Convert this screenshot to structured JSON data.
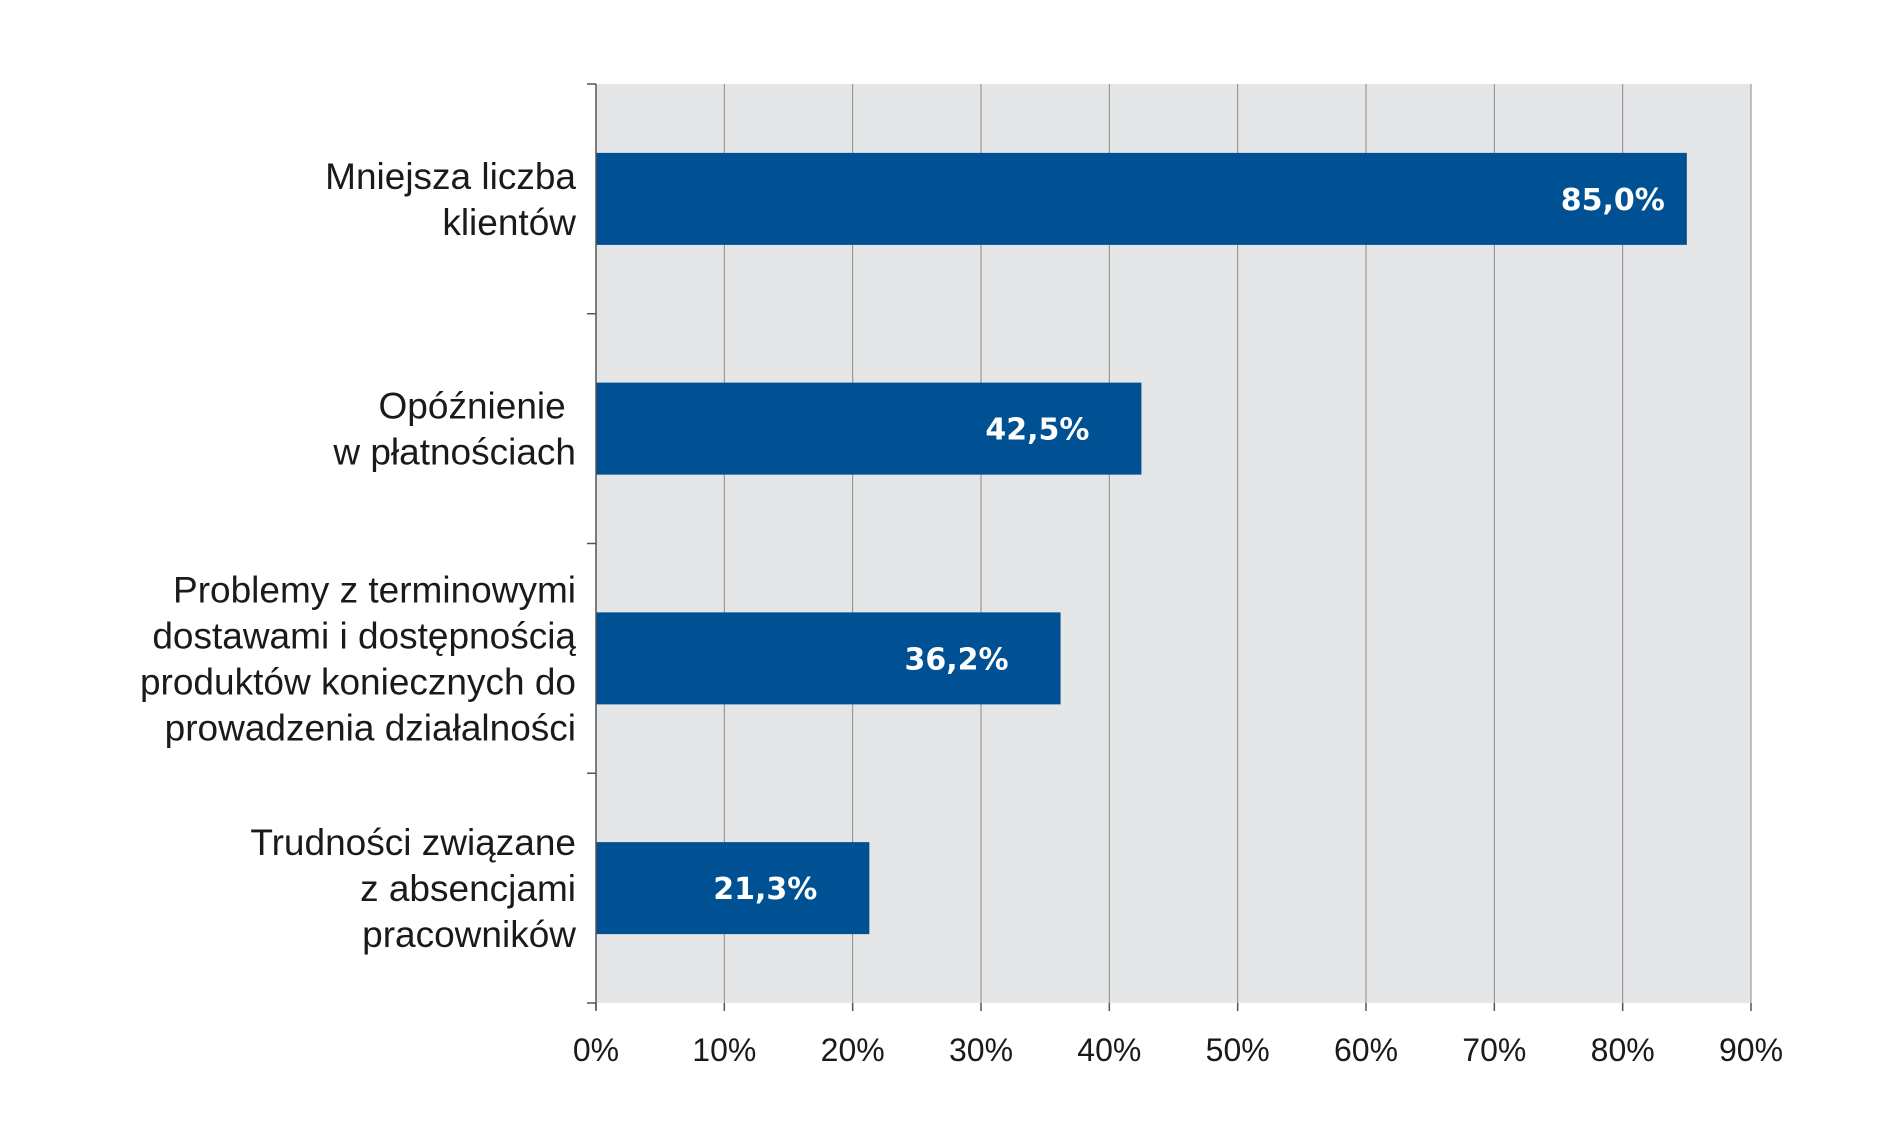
{
  "chart_data": {
    "type": "bar",
    "orientation": "horizontal",
    "categories": [
      [
        "Mniejsza liczba",
        "klientów"
      ],
      [
        "Opóźnienie ",
        "w płatnościach"
      ],
      [
        "Problemy z terminowymi",
        "dostawami i dostępnością",
        "produktów koniecznych do",
        "prowadzenia działalności"
      ],
      [
        "Trudności związane",
        "z absencjami",
        "pracowników"
      ]
    ],
    "values": [
      85.0,
      42.5,
      36.2,
      21.3
    ],
    "data_labels": [
      "85,0%",
      "42,5%",
      "36,2%",
      "21,3%"
    ],
    "xlim": [
      0,
      90
    ],
    "x_ticks": [
      0,
      10,
      20,
      30,
      40,
      50,
      60,
      70,
      80,
      90
    ],
    "x_tick_labels": [
      "0%",
      "10%",
      "20%",
      "30%",
      "40%",
      "50%",
      "60%",
      "70%",
      "80%",
      "90%"
    ],
    "title": "",
    "xlabel": "",
    "ylabel": "",
    "grid": "vertical",
    "legend": "none",
    "colors": {
      "bar": "#005193",
      "plot_background": "#e5e6e8",
      "grid": "#8a8a8a",
      "axis": "#555555",
      "data_label": "#ffffff"
    }
  }
}
